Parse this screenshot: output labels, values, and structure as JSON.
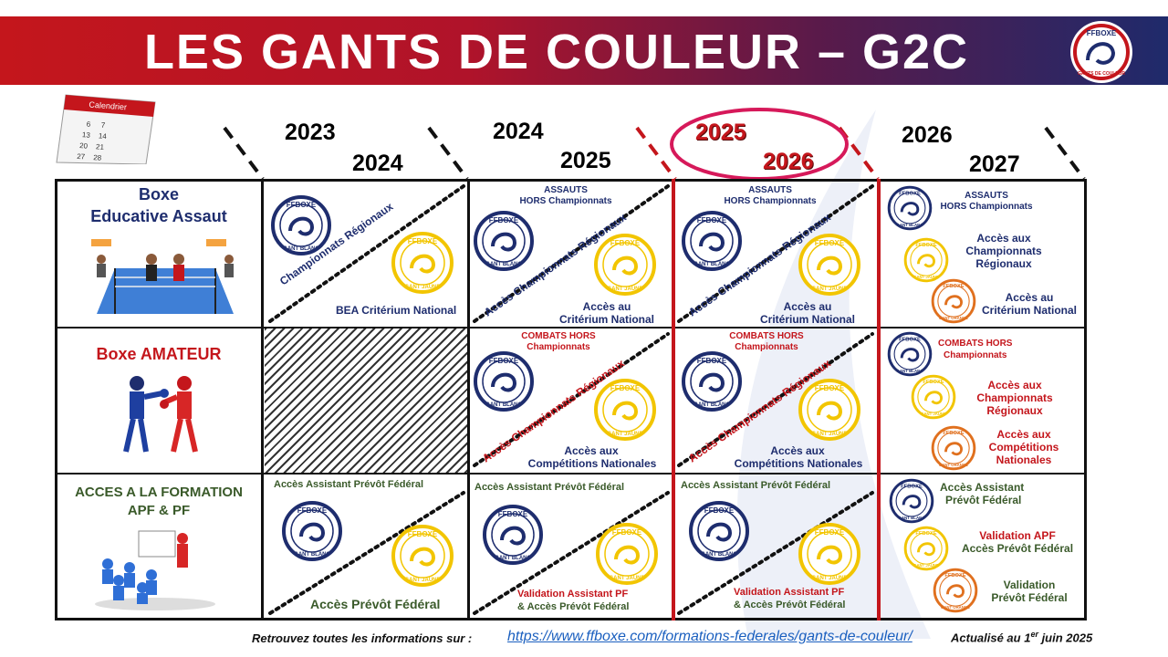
{
  "header": {
    "title": "LES GANTS DE COULEUR – G2C",
    "logo_text_top": "FFBOXE",
    "logo_text_bottom": "GANTS DE COULEUR"
  },
  "calendar": {
    "label": "Calendrier",
    "days": [
      "6",
      "7",
      "13",
      "14",
      "20",
      "21",
      "27",
      "28"
    ]
  },
  "seasons": [
    {
      "start": "2023",
      "end": "2024"
    },
    {
      "start": "2024",
      "end": "2025"
    },
    {
      "start": "2025",
      "end": "2026"
    },
    {
      "start": "2026",
      "end": "2027"
    }
  ],
  "rows": {
    "educative": {
      "line1": "Boxe",
      "line2": "Educative Assaut"
    },
    "amateur": {
      "label": "Boxe AMATEUR"
    },
    "formation": {
      "line1": "ACCES A LA FORMATION",
      "line2": "APF & PF"
    }
  },
  "gloves": {
    "blanc": "GANT BLANC",
    "jaune": "GANT JAUNE",
    "orange": "GANT ORANGE",
    "brand": "FFBOXE"
  },
  "cells": {
    "edu_2324": {
      "diag": "Championnats Régionaux",
      "bottom": "BEA Critérium National"
    },
    "edu_2425": {
      "top1": "ASSAUTS",
      "top2": "HORS Championnats",
      "diag": "Accès Championnats Régionaux",
      "bottom1": "Accès au",
      "bottom2": "Critérium National"
    },
    "edu_2526": {
      "top1": "ASSAUTS",
      "top2": "HORS Championnats",
      "diag": "Accès Championnats Régionaux",
      "bottom1": "Accès au",
      "bottom2": "Critérium National"
    },
    "edu_2627": {
      "top1": "ASSAUTS",
      "top2": "HORS Championnats",
      "mid1": "Accès aux",
      "mid2": "Championnats",
      "mid3": "Régionaux",
      "bot1": "Accès au",
      "bot2": "Critérium National"
    },
    "am_2425": {
      "top1": "COMBATS HORS",
      "top2": "Championnats",
      "diag": "Accès Championnats Régionaux",
      "bottom1": "Accès aux",
      "bottom2": "Compétitions Nationales"
    },
    "am_2526": {
      "top1": "COMBATS HORS",
      "top2": "Championnats",
      "diag": "Accès Championnats Régionaux",
      "bottom1": "Accès aux",
      "bottom2": "Compétitions Nationales"
    },
    "am_2627": {
      "top1": "COMBATS HORS",
      "top2": "Championnats",
      "mid1": "Accès aux",
      "mid2": "Championnats",
      "mid3": "Régionaux",
      "bot1": "Accès aux",
      "bot2": "Compétitions",
      "bot3": "Nationales"
    },
    "fo_2324": {
      "top": "Accès Assistant Prévôt Fédéral",
      "bottom": "Accès Prévôt Fédéral"
    },
    "fo_2425": {
      "top": "Accès Assistant Prévôt Fédéral",
      "bottom1": "Validation Assistant PF",
      "bottom2": "& Accès Prévôt Fédéral"
    },
    "fo_2526": {
      "top": "Accès Assistant Prévôt Fédéral",
      "bottom1": "Validation Assistant PF",
      "bottom2": "& Accès Prévôt Fédéral"
    },
    "fo_2627": {
      "top1": "Accès Assistant",
      "top2": "Prévôt Fédéral",
      "mid1": "Validation APF",
      "mid2": "Accès Prévôt Fédéral",
      "bot1": "Validation",
      "bot2": "Prévôt Fédéral"
    }
  },
  "footer": {
    "text": "Retrouvez toutes les informations sur :",
    "link": "https://www.ffboxe.com/formations-federales/gants-de-couleur/",
    "updated_prefix": "Actualisé au 1",
    "updated_sup": "er",
    "updated_suffix": " juin 2025"
  },
  "colors": {
    "red": "#c4161c",
    "navy": "#1e2d6e",
    "gold": "#f2c500",
    "orange": "#e0701e",
    "highlight": "#d6195a"
  }
}
